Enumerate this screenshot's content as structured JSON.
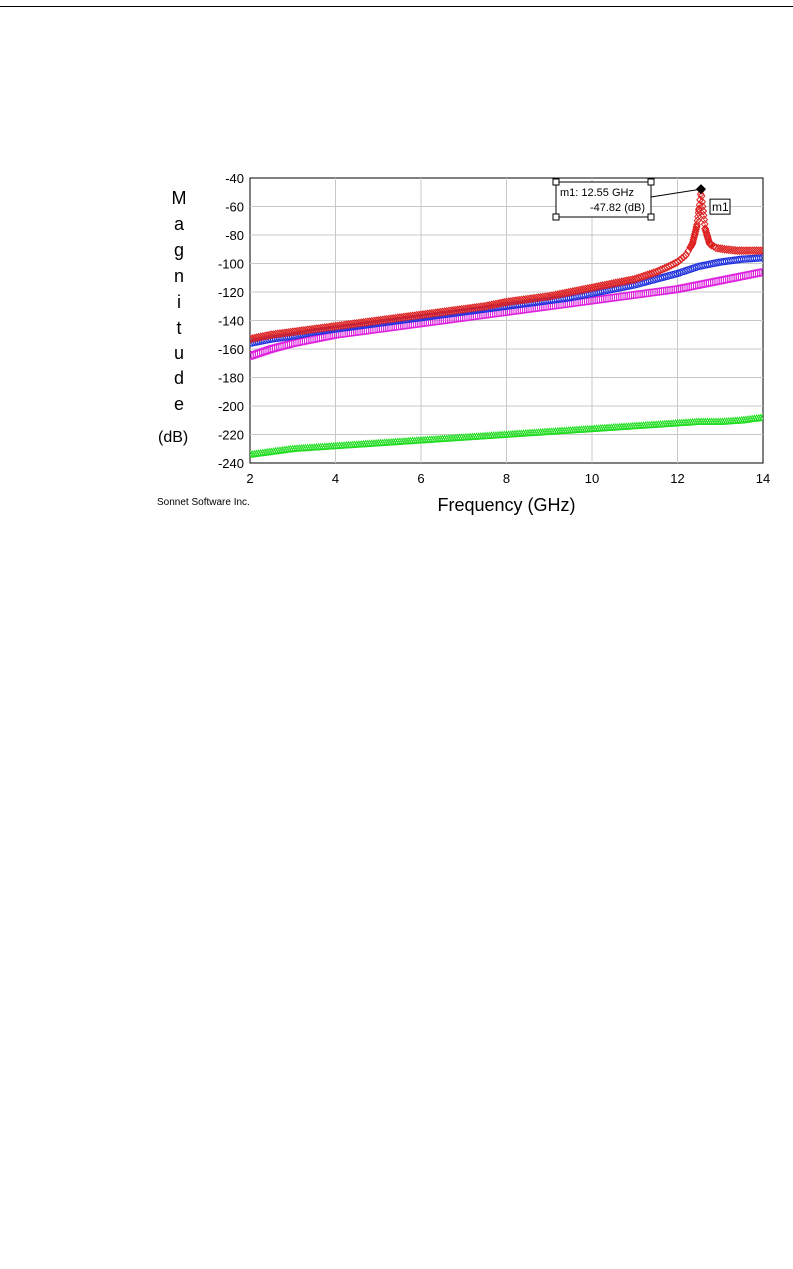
{
  "credit": "Sonnet Software Inc.",
  "chart_data": {
    "type": "scatter",
    "xlabel": "Frequency (GHz)",
    "ylabel_letters": [
      "M",
      "a",
      "g",
      "n",
      "i",
      "t",
      "u",
      "d",
      "e"
    ],
    "ylabel_unit": "(dB)",
    "xlim": [
      2,
      14
    ],
    "ylim": [
      -240,
      -40
    ],
    "xticks": [
      2,
      4,
      6,
      8,
      10,
      12,
      14
    ],
    "xtick_labels": [
      "2",
      "4",
      "6",
      "8",
      "10",
      "12",
      "14"
    ],
    "yticks": [
      -40,
      -60,
      -80,
      -100,
      -120,
      -140,
      -160,
      -180,
      -200,
      -220,
      -240
    ],
    "ytick_labels": [
      "-40",
      "-60",
      "-80",
      "-100",
      "-120",
      "-140",
      "-160",
      "-180",
      "-200",
      "-220",
      "-240"
    ],
    "grid": true,
    "series": [
      {
        "color": "#dd2222",
        "marker": "diamond",
        "x": [
          2,
          2.5,
          3,
          3.5,
          4,
          4.5,
          5,
          5.5,
          6,
          6.5,
          7,
          7.5,
          8,
          8.5,
          9,
          9.5,
          10,
          10.5,
          11,
          11.5,
          11.8,
          12,
          12.2,
          12.35,
          12.45,
          12.52,
          12.55,
          12.58,
          12.65,
          12.75,
          12.9,
          13.1,
          13.4,
          13.7,
          14
        ],
        "y": [
          -153,
          -150,
          -148,
          -146,
          -144,
          -142,
          -140,
          -138,
          -136,
          -134,
          -132,
          -130,
          -127,
          -125,
          -123,
          -120,
          -117,
          -114,
          -111,
          -106,
          -102,
          -99,
          -94,
          -86,
          -74,
          -58,
          -48,
          -58,
          -76,
          -86,
          -89,
          -90,
          -91,
          -91,
          -91
        ]
      },
      {
        "color": "#2233dd",
        "marker": "circle",
        "x": [
          2,
          2.5,
          3,
          3.5,
          4,
          4.5,
          5,
          5.5,
          6,
          6.5,
          7,
          7.5,
          8,
          8.5,
          9,
          9.5,
          10,
          10.5,
          11,
          11.5,
          12,
          12.5,
          13,
          13.5,
          14
        ],
        "y": [
          -156,
          -153,
          -151,
          -148,
          -146,
          -144,
          -142,
          -140,
          -138,
          -136,
          -134,
          -132,
          -130,
          -128,
          -126,
          -124,
          -121,
          -118,
          -115,
          -111,
          -107,
          -102,
          -99,
          -97,
          -96
        ]
      },
      {
        "color": "#dd22dd",
        "marker": "square",
        "x": [
          2,
          2.5,
          3,
          3.5,
          4,
          4.5,
          5,
          5.5,
          6,
          6.5,
          7,
          7.5,
          8,
          8.5,
          9,
          9.5,
          10,
          10.5,
          11,
          11.5,
          12,
          12.5,
          13,
          13.5,
          14
        ],
        "y": [
          -165,
          -160,
          -156,
          -153,
          -150,
          -148,
          -146,
          -144,
          -142,
          -140,
          -138,
          -136,
          -134,
          -132,
          -130,
          -128,
          -126,
          -124,
          -122,
          -120,
          -118,
          -115,
          -112,
          -109,
          -106
        ]
      },
      {
        "color": "#22dd22",
        "marker": "triangle",
        "x": [
          2,
          2.5,
          3,
          3.5,
          4,
          4.5,
          5,
          5.5,
          6,
          6.5,
          7,
          7.5,
          8,
          8.5,
          9,
          9.5,
          10,
          10.5,
          11,
          11.5,
          12,
          12.5,
          13,
          13.5,
          14
        ],
        "y": [
          -234,
          -232,
          -230,
          -229,
          -228,
          -227,
          -226,
          -225,
          -224,
          -223,
          -222,
          -221,
          -220,
          -219,
          -218,
          -217,
          -216,
          -215,
          -214,
          -213,
          -212,
          -211,
          -211,
          -210,
          -208
        ]
      }
    ],
    "marker_point": {
      "label": "m1",
      "x": 12.55,
      "y": -47.82
    },
    "marker_box": {
      "line1": "m1: 12.55 GHz",
      "line2": "-47.82  (dB)"
    }
  }
}
